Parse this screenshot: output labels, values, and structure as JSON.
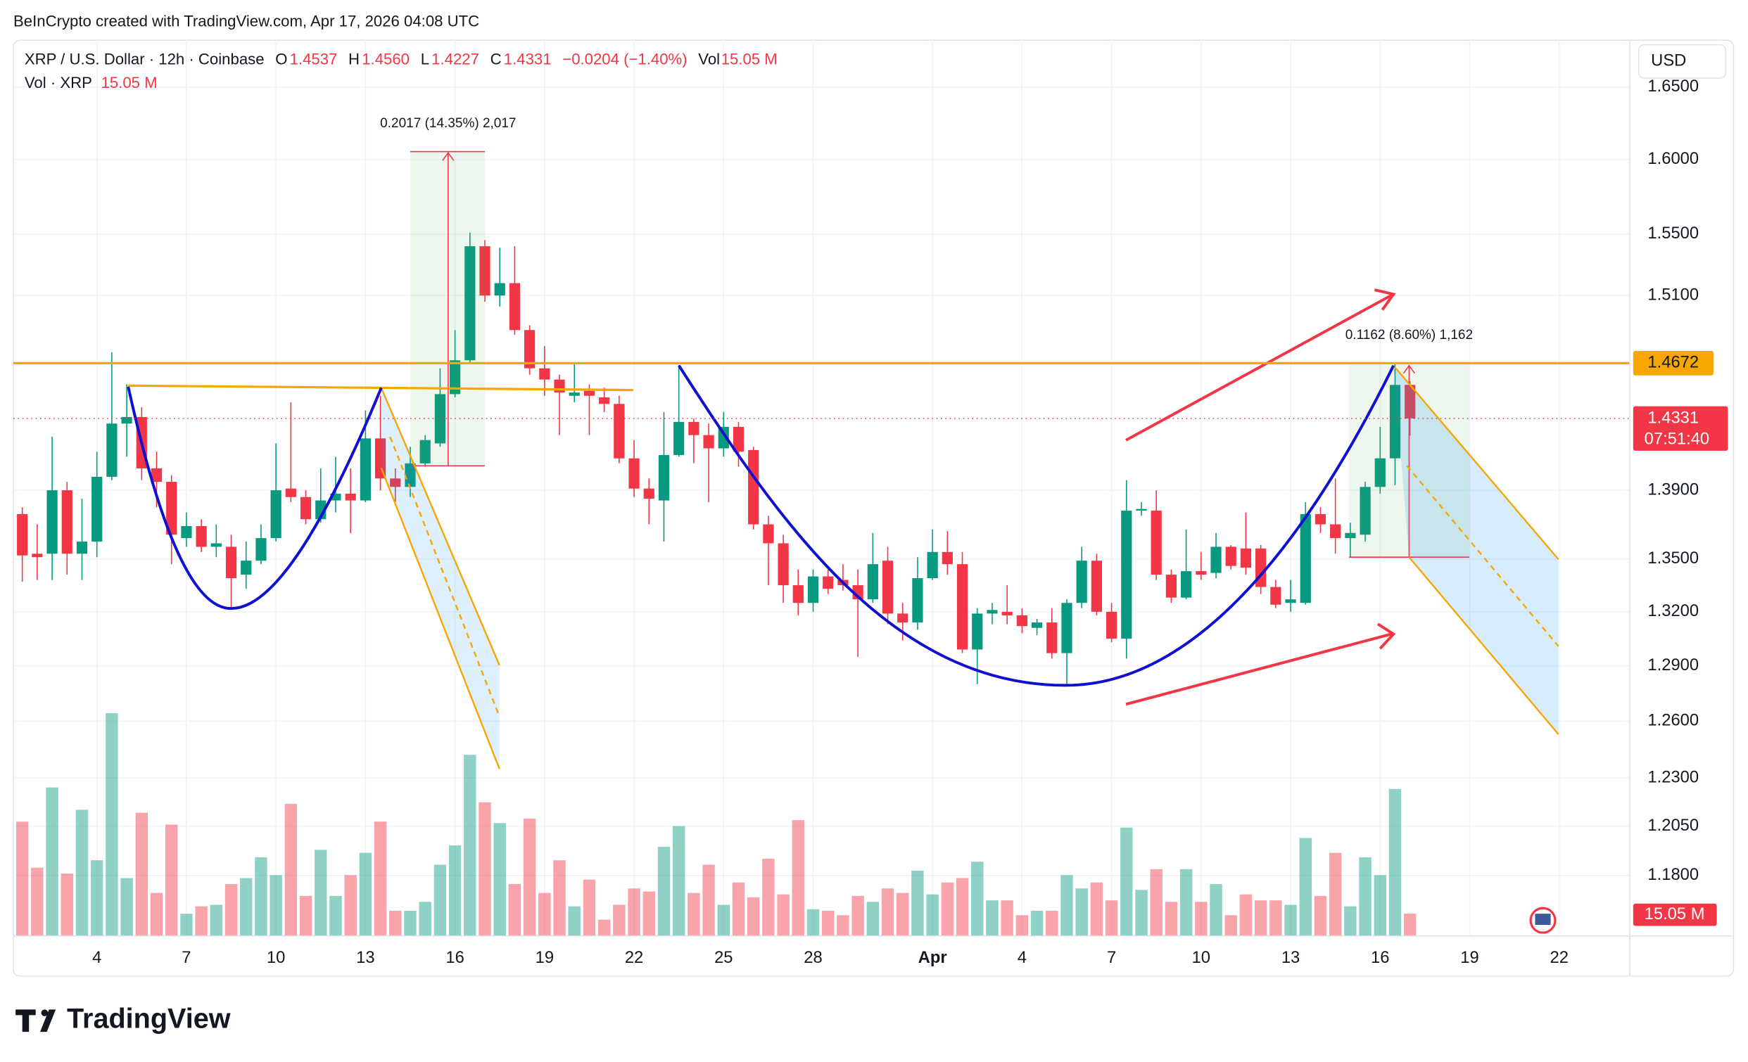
{
  "header": {
    "credit": "BeInCrypto created with TradingView.com, Apr 17, 2026 04:08 UTC",
    "symbol": "XRP / U.S. Dollar · 12h · Coinbase",
    "o_label": "O",
    "open": "1.4537",
    "h_label": "H",
    "high": "1.4560",
    "l_label": "L",
    "low": "1.4227",
    "c_label": "C",
    "close": "1.4331",
    "change": "−0.0204 (−1.40%)",
    "vol_label": "Vol",
    "volume_row_label": "Vol · XRP"
  },
  "currency": "USD",
  "footer": "TradingView",
  "chart_data": {
    "type": "candlestick",
    "log_scale": true,
    "grid": true,
    "up_color": "#089981",
    "down_color": "#f23645",
    "ylim": [
      1.15,
      1.68
    ],
    "yticks": [
      {
        "value": 1.65,
        "label": "1.6500"
      },
      {
        "value": 1.6,
        "label": "1.6000"
      },
      {
        "value": 1.55,
        "label": "1.5500"
      },
      {
        "value": 1.51,
        "label": "1.5100"
      },
      {
        "value": 1.39,
        "label": "1.3900"
      },
      {
        "value": 1.35,
        "label": "1.3500"
      },
      {
        "value": 1.32,
        "label": "1.3200"
      },
      {
        "value": 1.29,
        "label": "1.2900"
      },
      {
        "value": 1.26,
        "label": "1.2600"
      },
      {
        "value": 1.23,
        "label": "1.2300"
      },
      {
        "value": 1.205,
        "label": "1.2050"
      },
      {
        "value": 1.18,
        "label": "1.1800"
      }
    ],
    "categories": [
      null,
      null,
      null,
      null,
      null,
      "4",
      null,
      null,
      null,
      null,
      null,
      "7",
      null,
      null,
      null,
      null,
      null,
      "10",
      null,
      null,
      null,
      null,
      null,
      "13",
      null,
      null,
      null,
      null,
      null,
      "16",
      null,
      null,
      null,
      null,
      null,
      "19",
      null,
      null,
      null,
      null,
      null,
      "22",
      null,
      null,
      null,
      null,
      null,
      "25",
      null,
      null,
      null,
      null,
      null,
      "28",
      null,
      null,
      null,
      null,
      null,
      null,
      null,
      "Apr",
      null,
      null,
      null,
      null,
      null,
      "4",
      null,
      null,
      null,
      null,
      null,
      "7",
      null,
      null,
      null,
      null,
      null,
      "10",
      null,
      null,
      null,
      null,
      null,
      "13",
      null,
      null,
      null,
      null,
      null,
      "16",
      null,
      null,
      null,
      null,
      null,
      "19",
      null,
      null,
      null,
      null,
      null,
      "22"
    ],
    "open": [
      1.376,
      1.353,
      1.353,
      1.39,
      1.353,
      1.36,
      1.398,
      1.43,
      1.434,
      1.403,
      1.395,
      1.362,
      1.369,
      1.357,
      1.357,
      1.341,
      1.349,
      1.362,
      1.391,
      1.386,
      1.373,
      1.384,
      1.388,
      1.384,
      1.421,
      1.397,
      1.392,
      1.406,
      1.418,
      1.448,
      1.469,
      1.542,
      1.51,
      1.518,
      1.488,
      1.464,
      1.457,
      1.447,
      1.45,
      1.446,
      1.442,
      1.409,
      1.391,
      1.384,
      1.411,
      1.431,
      1.423,
      1.415,
      1.428,
      1.414,
      1.37,
      1.359,
      1.335,
      1.325,
      1.34,
      1.338,
      1.335,
      1.327,
      1.349,
      1.319,
      1.314,
      1.339,
      1.354,
      1.347,
      1.299,
      1.319,
      1.32,
      1.318,
      1.311,
      1.314,
      1.297,
      1.325,
      1.349,
      1.32,
      1.305,
      1.378,
      1.378,
      1.341,
      1.328,
      1.343,
      1.342,
      1.357,
      1.356,
      1.356,
      1.334,
      1.325,
      1.325,
      1.376,
      1.37,
      1.362,
      1.364,
      1.392,
      1.409,
      1.4537,
      null,
      null,
      null,
      null,
      null,
      null,
      null,
      null,
      null,
      null
    ],
    "high": [
      1.38,
      1.37,
      1.422,
      1.395,
      1.385,
      1.413,
      1.474,
      1.454,
      1.44,
      1.413,
      1.399,
      1.377,
      1.373,
      1.37,
      1.364,
      1.36,
      1.37,
      1.418,
      1.443,
      1.39,
      1.403,
      1.41,
      1.403,
      1.438,
      1.447,
      1.403,
      1.416,
      1.423,
      1.464,
      1.488,
      1.551,
      1.546,
      1.541,
      1.542,
      1.491,
      1.478,
      1.46,
      1.467,
      1.454,
      1.452,
      1.447,
      1.42,
      1.397,
      1.437,
      1.466,
      1.433,
      1.43,
      1.437,
      1.431,
      1.416,
      1.375,
      1.364,
      1.344,
      1.344,
      1.344,
      1.347,
      1.344,
      1.365,
      1.357,
      1.325,
      1.351,
      1.367,
      1.366,
      1.354,
      1.322,
      1.325,
      1.335,
      1.322,
      1.316,
      1.322,
      1.327,
      1.357,
      1.353,
      1.325,
      1.396,
      1.383,
      1.39,
      1.344,
      1.367,
      1.354,
      1.365,
      1.358,
      1.377,
      1.358,
      1.338,
      1.338,
      1.383,
      1.38,
      1.397,
      1.371,
      1.395,
      1.428,
      1.4672,
      1.456,
      null,
      null,
      null,
      null,
      null,
      null,
      null,
      null,
      null,
      null
    ],
    "low": [
      1.337,
      1.338,
      1.338,
      1.341,
      1.338,
      1.351,
      1.396,
      1.41,
      1.396,
      1.38,
      1.347,
      1.357,
      1.354,
      1.351,
      1.322,
      1.333,
      1.347,
      1.36,
      1.383,
      1.37,
      1.371,
      1.377,
      1.365,
      1.383,
      1.39,
      1.383,
      1.386,
      1.404,
      1.416,
      1.446,
      1.467,
      1.506,
      1.503,
      1.485,
      1.46,
      1.447,
      1.423,
      1.443,
      1.423,
      1.437,
      1.406,
      1.386,
      1.37,
      1.36,
      1.41,
      1.406,
      1.383,
      1.41,
      1.404,
      1.367,
      1.335,
      1.325,
      1.318,
      1.32,
      1.33,
      1.332,
      1.295,
      1.325,
      1.313,
      1.304,
      1.31,
      1.338,
      1.341,
      1.297,
      1.28,
      1.313,
      1.313,
      1.308,
      1.307,
      1.294,
      1.279,
      1.322,
      1.318,
      1.303,
      1.294,
      1.375,
      1.338,
      1.325,
      1.327,
      1.338,
      1.339,
      1.344,
      1.341,
      1.33,
      1.322,
      1.32,
      1.324,
      1.365,
      1.353,
      1.351,
      1.36,
      1.388,
      1.393,
      1.4227,
      null,
      null,
      null,
      null,
      null,
      null,
      null,
      null,
      null,
      null
    ],
    "close": [
      1.352,
      1.351,
      1.39,
      1.353,
      1.36,
      1.398,
      1.43,
      1.434,
      1.403,
      1.395,
      1.364,
      1.369,
      1.357,
      1.359,
      1.339,
      1.349,
      1.362,
      1.39,
      1.386,
      1.373,
      1.384,
      1.388,
      1.384,
      1.421,
      1.397,
      1.392,
      1.406,
      1.42,
      1.448,
      1.469,
      1.542,
      1.51,
      1.518,
      1.488,
      1.464,
      1.457,
      1.449,
      1.449,
      1.447,
      1.442,
      1.409,
      1.391,
      1.385,
      1.411,
      1.431,
      1.423,
      1.415,
      1.428,
      1.413,
      1.37,
      1.359,
      1.335,
      1.325,
      1.34,
      1.333,
      1.335,
      1.327,
      1.347,
      1.319,
      1.314,
      1.339,
      1.354,
      1.347,
      1.299,
      1.319,
      1.321,
      1.318,
      1.312,
      1.314,
      1.297,
      1.325,
      1.349,
      1.32,
      1.305,
      1.378,
      1.379,
      1.341,
      1.328,
      1.343,
      1.341,
      1.357,
      1.346,
      1.345,
      1.334,
      1.324,
      1.327,
      1.376,
      1.37,
      1.362,
      1.365,
      1.392,
      1.409,
      1.4537,
      1.4331,
      null,
      null,
      null,
      null,
      null,
      null,
      null,
      null,
      null,
      null
    ],
    "volume": [
      77,
      46,
      100,
      42,
      85,
      51,
      150,
      39,
      83,
      29,
      75,
      15,
      20,
      21,
      35,
      39,
      53,
      41,
      89,
      27,
      58,
      27,
      41,
      56,
      77,
      17,
      17,
      23,
      48,
      61,
      122,
      90,
      76,
      35,
      79,
      29,
      51,
      20,
      38,
      11,
      21,
      32,
      30,
      60,
      74,
      29,
      48,
      21,
      36,
      26,
      52,
      28,
      78,
      18,
      17,
      14,
      27,
      23,
      32,
      29,
      44,
      28,
      36,
      39,
      50,
      24,
      24,
      14,
      17,
      17,
      41,
      32,
      36,
      24,
      73,
      31,
      45,
      23,
      45,
      23,
      35,
      14,
      28,
      24,
      24,
      21,
      66,
      27,
      56,
      20,
      53,
      41,
      99,
      15.05,
      null,
      null,
      null,
      null,
      null,
      null,
      null,
      null,
      null,
      null
    ],
    "last_volume_label": "15.05 M",
    "countdown": "07:51:40",
    "price_lines": [
      {
        "value": 1.4672,
        "color": "#f7a600"
      }
    ],
    "annotations": [
      "0.2017 (14.35%) 2,017",
      "0.1162 (8.60%) 1,162"
    ]
  }
}
